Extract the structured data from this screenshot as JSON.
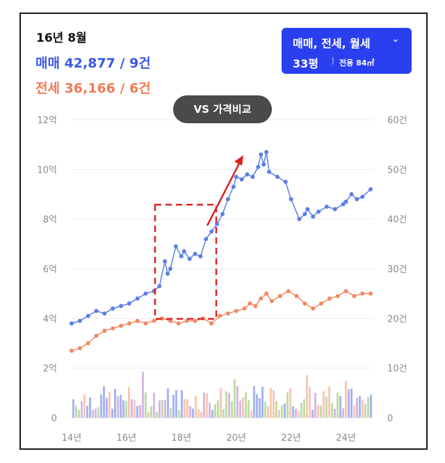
{
  "header": {
    "period": "16년 8월",
    "sale_label": "매매 42,877 / 9건",
    "jeonse_label": "전세 36,166 / 6건"
  },
  "filter": {
    "type_label": "매매, 전세, 월세",
    "size_label": "33평",
    "separator": "|",
    "area_label": "전용 84㎡"
  },
  "compare_button": {
    "label": "VS 가격비교"
  },
  "colors": {
    "sale": "#5b7fe6",
    "jeonse": "#f08a66",
    "accent_button": "#2a3ff0",
    "annotation": "#e02020"
  },
  "chart_data": {
    "type": "line",
    "x_ticks": [
      "14년",
      "16년",
      "18년",
      "20년",
      "22년",
      "24년"
    ],
    "x_tick_values": [
      2014,
      2016,
      2018,
      2020,
      2022,
      2024
    ],
    "xlim": [
      2014,
      2025
    ],
    "y_left_ticks": [
      "0",
      "2억",
      "4억",
      "6억",
      "8억",
      "10억",
      "12억"
    ],
    "y_left_values": [
      0,
      2,
      4,
      6,
      8,
      10,
      12
    ],
    "ylim_left": [
      0,
      12
    ],
    "y_right_ticks": [
      "0",
      "10건",
      "20건",
      "30건",
      "40건",
      "50건",
      "60건"
    ],
    "y_right_values": [
      0,
      10,
      20,
      30,
      40,
      50,
      60
    ],
    "ylim_right": [
      0,
      60
    ],
    "grid": true,
    "series": [
      {
        "name": "매매",
        "axis": "left",
        "x": [
          2014.0,
          2014.3,
          2014.6,
          2014.9,
          2015.2,
          2015.5,
          2015.8,
          2016.1,
          2016.4,
          2016.7,
          2017.0,
          2017.2,
          2017.4,
          2017.5,
          2017.6,
          2017.8,
          2018.0,
          2018.1,
          2018.3,
          2018.5,
          2018.7,
          2018.9,
          2019.1,
          2019.3,
          2019.5,
          2019.7,
          2019.9,
          2020.0,
          2020.2,
          2020.4,
          2020.6,
          2020.8,
          2020.9,
          2021.0,
          2021.1,
          2021.2,
          2021.5,
          2021.8,
          2022.0,
          2022.3,
          2022.5,
          2022.6,
          2022.8,
          2023.0,
          2023.3,
          2023.6,
          2023.9,
          2024.0,
          2024.2,
          2024.4,
          2024.6,
          2024.9
        ],
        "values": [
          3.8,
          3.9,
          4.1,
          4.3,
          4.2,
          4.4,
          4.5,
          4.6,
          4.8,
          5.0,
          5.1,
          5.3,
          6.3,
          5.8,
          6.0,
          6.9,
          6.5,
          6.7,
          6.4,
          6.6,
          6.5,
          7.2,
          7.5,
          7.8,
          8.2,
          8.8,
          9.3,
          9.7,
          9.6,
          9.8,
          9.7,
          10.1,
          10.6,
          10.2,
          10.7,
          9.9,
          9.7,
          9.5,
          8.8,
          8.0,
          8.2,
          8.4,
          8.1,
          8.3,
          8.5,
          8.4,
          8.6,
          8.7,
          9.0,
          8.8,
          8.9,
          9.2
        ]
      },
      {
        "name": "전세",
        "axis": "left",
        "x": [
          2014.0,
          2014.3,
          2014.6,
          2014.9,
          2015.2,
          2015.5,
          2015.8,
          2016.1,
          2016.4,
          2016.7,
          2017.0,
          2017.3,
          2017.6,
          2017.9,
          2018.2,
          2018.5,
          2018.8,
          2019.1,
          2019.4,
          2019.7,
          2020.0,
          2020.3,
          2020.5,
          2020.7,
          2020.9,
          2021.1,
          2021.3,
          2021.6,
          2021.9,
          2022.2,
          2022.5,
          2022.8,
          2023.1,
          2023.4,
          2023.7,
          2024.0,
          2024.3,
          2024.6,
          2024.9
        ],
        "values": [
          2.7,
          2.8,
          3.0,
          3.3,
          3.5,
          3.6,
          3.7,
          3.8,
          3.9,
          3.8,
          3.9,
          4.0,
          3.9,
          3.8,
          3.9,
          3.9,
          4.0,
          3.8,
          4.1,
          4.2,
          4.3,
          4.4,
          4.6,
          4.5,
          4.8,
          5.0,
          4.7,
          4.9,
          5.1,
          4.9,
          4.6,
          4.4,
          4.6,
          4.8,
          4.9,
          5.1,
          4.9,
          5.0,
          5.0
        ]
      }
    ]
  }
}
